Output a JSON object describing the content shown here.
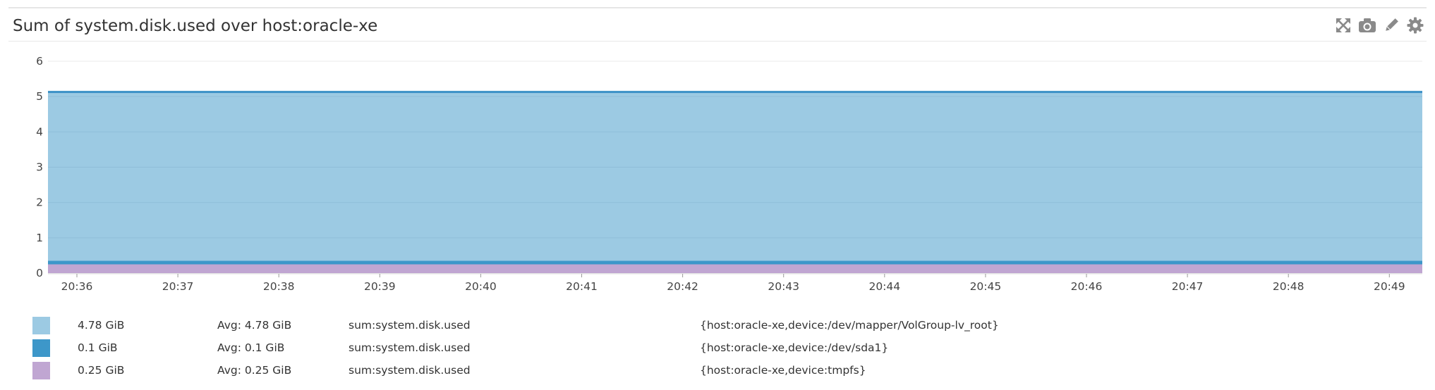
{
  "widget": {
    "title": "Sum of system.disk.used over host:oracle-xe",
    "toolbar": [
      {
        "name": "expand-icon"
      },
      {
        "name": "camera-icon"
      },
      {
        "name": "pencil-icon"
      },
      {
        "name": "gear-icon"
      }
    ]
  },
  "chart_data": {
    "type": "area",
    "stacked": true,
    "title": "Sum of system.disk.used over host:oracle-xe",
    "xlabel": "",
    "ylabel": "",
    "x_ticks": [
      "20:36",
      "20:37",
      "20:38",
      "20:39",
      "20:40",
      "20:41",
      "20:42",
      "20:43",
      "20:44",
      "20:45",
      "20:46",
      "20:47",
      "20:48",
      "20:49"
    ],
    "y_ticks": [
      0,
      1,
      2,
      3,
      4,
      5,
      6
    ],
    "ylim": [
      0,
      6
    ],
    "grid": "horizontal",
    "legend_position": "bottom",
    "series": [
      {
        "value_label": "0.25 GiB",
        "avg_label": "Avg: 0.25 GiB",
        "metric": "sum:system.disk.used",
        "scope": "{host:oracle-xe,device:tmpfs}",
        "value": 0.25,
        "color": "#c0a6d2",
        "values": [
          0.25,
          0.25,
          0.25,
          0.25,
          0.25,
          0.25,
          0.25,
          0.25,
          0.25,
          0.25,
          0.25,
          0.25,
          0.25,
          0.25
        ]
      },
      {
        "value_label": "0.1 GiB",
        "avg_label": "Avg: 0.1 GiB",
        "metric": "sum:system.disk.used",
        "scope": "{host:oracle-xe,device:/dev/sda1}",
        "value": 0.1,
        "color": "#3d97c9",
        "values": [
          0.1,
          0.1,
          0.1,
          0.1,
          0.1,
          0.1,
          0.1,
          0.1,
          0.1,
          0.1,
          0.1,
          0.1,
          0.1,
          0.1
        ]
      },
      {
        "value_label": "4.78 GiB",
        "avg_label": "Avg: 4.78 GiB",
        "metric": "sum:system.disk.used",
        "scope": "{host:oracle-xe,device:/dev/mapper/VolGroup-lv_root}",
        "value": 4.78,
        "color": "#9ccae3",
        "values": [
          4.78,
          4.78,
          4.78,
          4.78,
          4.78,
          4.78,
          4.78,
          4.78,
          4.78,
          4.78,
          4.78,
          4.78,
          4.78,
          4.78
        ]
      }
    ],
    "legend_order": [
      2,
      1,
      0
    ],
    "top_line_color": "#3a90c6"
  }
}
